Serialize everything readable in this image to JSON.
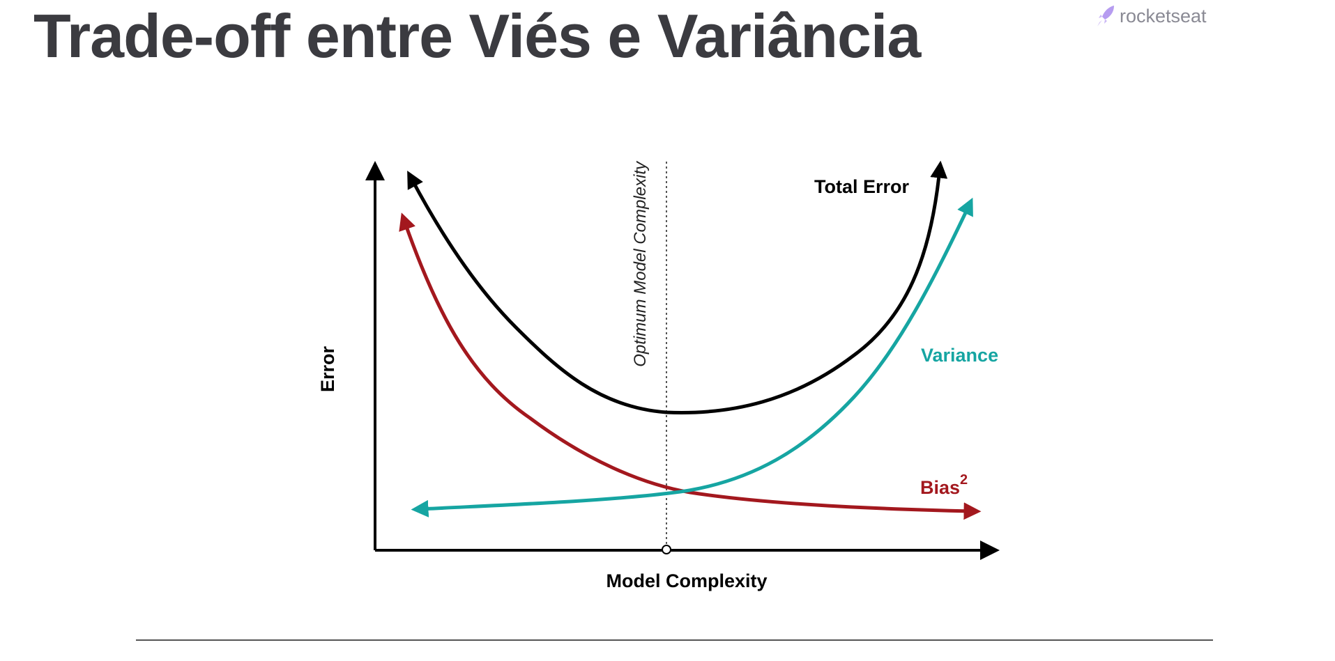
{
  "title": "Trade-off entre Viés e Variância",
  "brand": {
    "name": "rocketseat",
    "icon": "rocket-icon",
    "color": "#8a8a94",
    "icon_color": "#b69cf0"
  },
  "diagram": {
    "y_axis_label": "Error",
    "x_axis_label": "Model Complexity",
    "optimum_label": "Optimum Model Complexity",
    "curves": {
      "total_error": {
        "label": "Total Error",
        "color": "#000000"
      },
      "variance": {
        "label": "Variance",
        "color": "#16a5a2"
      },
      "bias": {
        "label": "Bias",
        "superscript": "2",
        "color": "#a3181e"
      }
    }
  }
}
